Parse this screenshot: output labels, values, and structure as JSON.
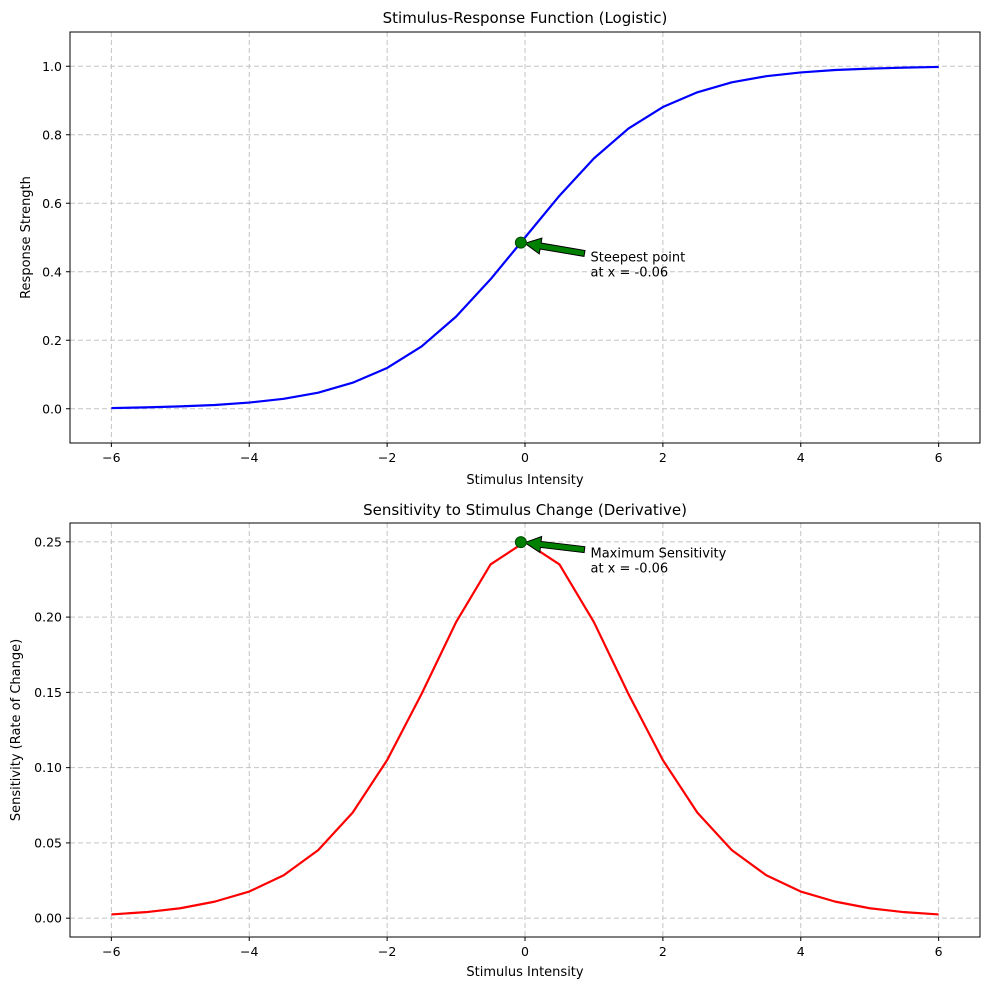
{
  "chart_data": [
    {
      "type": "line",
      "title": "Stimulus-Response Function (Logistic)",
      "xlabel": "Stimulus Intensity",
      "ylabel": "Response Strength",
      "xlim": [
        -6.6,
        6.6
      ],
      "ylim": [
        -0.1,
        1.1
      ],
      "xticks": [
        -6,
        -4,
        -2,
        0,
        2,
        4,
        6
      ],
      "xtick_labels": [
        "−6",
        "−4",
        "−2",
        "0",
        "2",
        "4",
        "6"
      ],
      "yticks": [
        0.0,
        0.2,
        0.4,
        0.6,
        0.8,
        1.0
      ],
      "ytick_labels": [
        "0.0",
        "0.2",
        "0.4",
        "0.6",
        "0.8",
        "1.0"
      ],
      "grid": true,
      "series": [
        {
          "color": "#0000ff",
          "x": [
            -6,
            -5.5,
            -5,
            -4.5,
            -4,
            -3.5,
            -3,
            -2.5,
            -2,
            -1.5,
            -1,
            -0.5,
            0,
            0.5,
            1,
            1.5,
            2,
            2.5,
            3,
            3.5,
            4,
            4.5,
            5,
            5.5,
            6
          ],
          "y": [
            0.002,
            0.004,
            0.007,
            0.011,
            0.018,
            0.029,
            0.047,
            0.076,
            0.119,
            0.182,
            0.269,
            0.378,
            0.5,
            0.622,
            0.731,
            0.818,
            0.881,
            0.924,
            0.953,
            0.971,
            0.982,
            0.989,
            0.993,
            0.996,
            0.998
          ]
        }
      ],
      "point": {
        "x": -0.06,
        "y": 0.485,
        "color": "#008000"
      },
      "annotation": {
        "lines": [
          "Steepest point",
          "at x = -0.06"
        ],
        "xy": [
          -0.06,
          0.485
        ],
        "xytext": [
          0.95,
          0.43
        ],
        "arrow_color": "#008000"
      }
    },
    {
      "type": "line",
      "title": "Sensitivity to Stimulus Change (Derivative)",
      "xlabel": "Stimulus Intensity",
      "ylabel": "Sensitivity (Rate of Change)",
      "xlim": [
        -6.6,
        6.6
      ],
      "ylim": [
        -0.0125,
        0.2625
      ],
      "xticks": [
        -6,
        -4,
        -2,
        0,
        2,
        4,
        6
      ],
      "xtick_labels": [
        "−6",
        "−4",
        "−2",
        "0",
        "2",
        "4",
        "6"
      ],
      "yticks": [
        0.0,
        0.05,
        0.1,
        0.15,
        0.2,
        0.25
      ],
      "ytick_labels": [
        "0.00",
        "0.05",
        "0.10",
        "0.15",
        "0.20",
        "0.25"
      ],
      "grid": true,
      "series": [
        {
          "color": "#ff0000",
          "x": [
            -6,
            -5.5,
            -5,
            -4.5,
            -4,
            -3.5,
            -3,
            -2.5,
            -2,
            -1.5,
            -1,
            -0.5,
            0,
            0.5,
            1,
            1.5,
            2,
            2.5,
            3,
            3.5,
            4,
            4.5,
            5,
            5.5,
            6
          ],
          "y": [
            0.0025,
            0.004,
            0.0066,
            0.011,
            0.0177,
            0.0285,
            0.0452,
            0.0701,
            0.105,
            0.149,
            0.1966,
            0.235,
            0.25,
            0.235,
            0.1966,
            0.149,
            0.105,
            0.0701,
            0.0452,
            0.0285,
            0.0177,
            0.011,
            0.0066,
            0.004,
            0.0025
          ]
        }
      ],
      "point": {
        "x": -0.06,
        "y": 0.2498,
        "color": "#008000"
      },
      "annotation": {
        "lines": [
          "Maximum Sensitivity",
          "at x = -0.06"
        ],
        "xy": [
          -0.06,
          0.2498
        ],
        "xytext": [
          0.95,
          0.2395
        ],
        "arrow_color": "#008000"
      }
    }
  ]
}
